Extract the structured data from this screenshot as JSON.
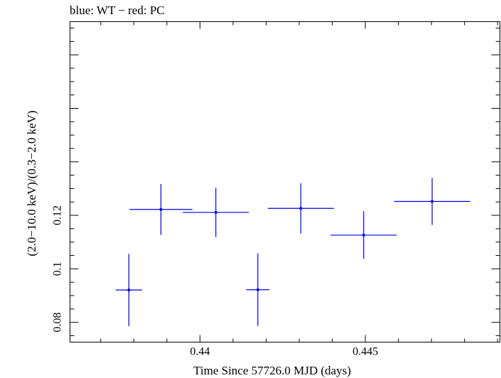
{
  "chart_data": {
    "type": "scatter",
    "title": "blue: WT − red: PC",
    "xlabel": "Time Since 57726.0 MJD (days)",
    "ylabel": "(2.0−10.0 keV)/(0.3−2.0 keV)",
    "xlim": [
      0.43607,
      0.44907
    ],
    "ylim": [
      0.0726,
      0.1924
    ],
    "x_ticks": [
      {
        "value": 0.44,
        "label": "0.44"
      },
      {
        "value": 0.445,
        "label": "0.445"
      }
    ],
    "y_ticks": [
      {
        "value": 0.08,
        "label": "0.08"
      },
      {
        "value": 0.1,
        "label": "0.1"
      },
      {
        "value": 0.12,
        "label": "0.12"
      }
    ],
    "grid": false,
    "series": [
      {
        "color": "#0000dd",
        "points": [
          {
            "x": 0.43785,
            "xerr": 0.0004,
            "y": 0.0921,
            "yerr": 0.0135
          },
          {
            "x": 0.43882,
            "xerr": 0.00095,
            "y": 0.1222,
            "yerr": 0.0095
          },
          {
            "x": 0.44048,
            "xerr": 0.001,
            "y": 0.1211,
            "yerr": 0.0092
          },
          {
            "x": 0.44175,
            "xerr": 0.00035,
            "y": 0.0922,
            "yerr": 0.0136
          },
          {
            "x": 0.44305,
            "xerr": 0.001,
            "y": 0.1226,
            "yerr": 0.0094
          },
          {
            "x": 0.44495,
            "xerr": 0.001,
            "y": 0.1126,
            "yerr": 0.0089
          },
          {
            "x": 0.44702,
            "xerr": 0.00115,
            "y": 0.1252,
            "yerr": 0.0088
          }
        ]
      }
    ]
  }
}
